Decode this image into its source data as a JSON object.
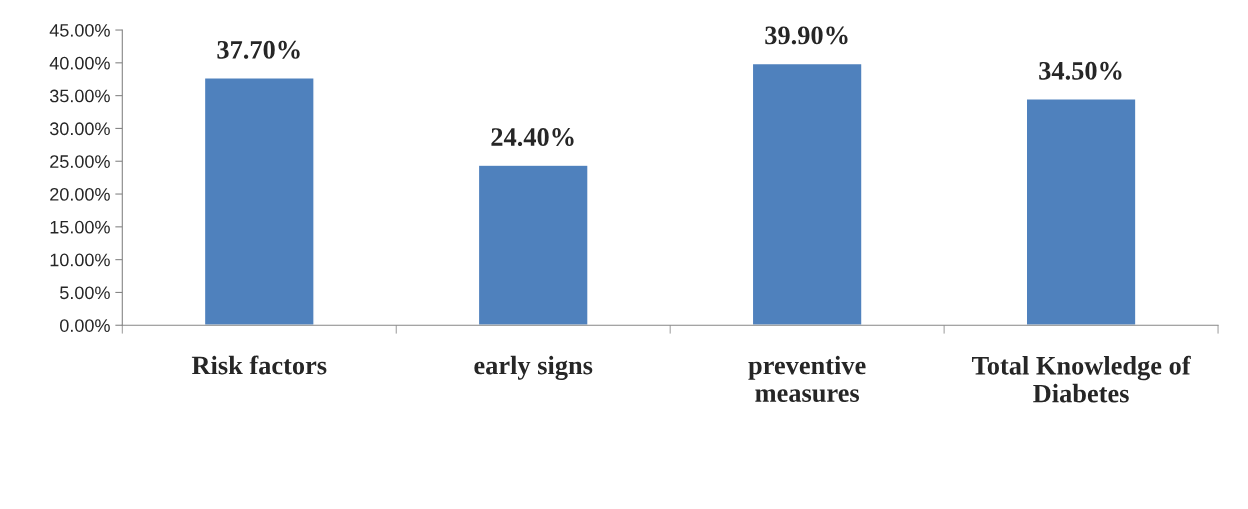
{
  "chart_data": {
    "type": "bar",
    "categories": [
      "Risk factors",
      "early signs",
      "preventive\nmeasures",
      "Total Knowledge of\nDiabetes"
    ],
    "values": [
      37.7,
      24.4,
      39.9,
      34.5
    ],
    "value_labels": [
      "37.70%",
      "24.40%",
      "39.90%",
      "34.50%"
    ],
    "color": "#4f81bd",
    "ylim": [
      0,
      45
    ],
    "yticks": [
      {
        "value": 0,
        "label": "0.00%"
      },
      {
        "value": 5,
        "label": "5.00%"
      },
      {
        "value": 10,
        "label": "10.00%"
      },
      {
        "value": 15,
        "label": "15.00%"
      },
      {
        "value": 20,
        "label": "20.00%"
      },
      {
        "value": 25,
        "label": "25.00%"
      },
      {
        "value": 30,
        "label": "30.00%"
      },
      {
        "value": 35,
        "label": "35.00%"
      },
      {
        "value": 40,
        "label": "40.00%"
      },
      {
        "value": 45,
        "label": "45.00%"
      }
    ],
    "grid": false,
    "legend": false
  }
}
